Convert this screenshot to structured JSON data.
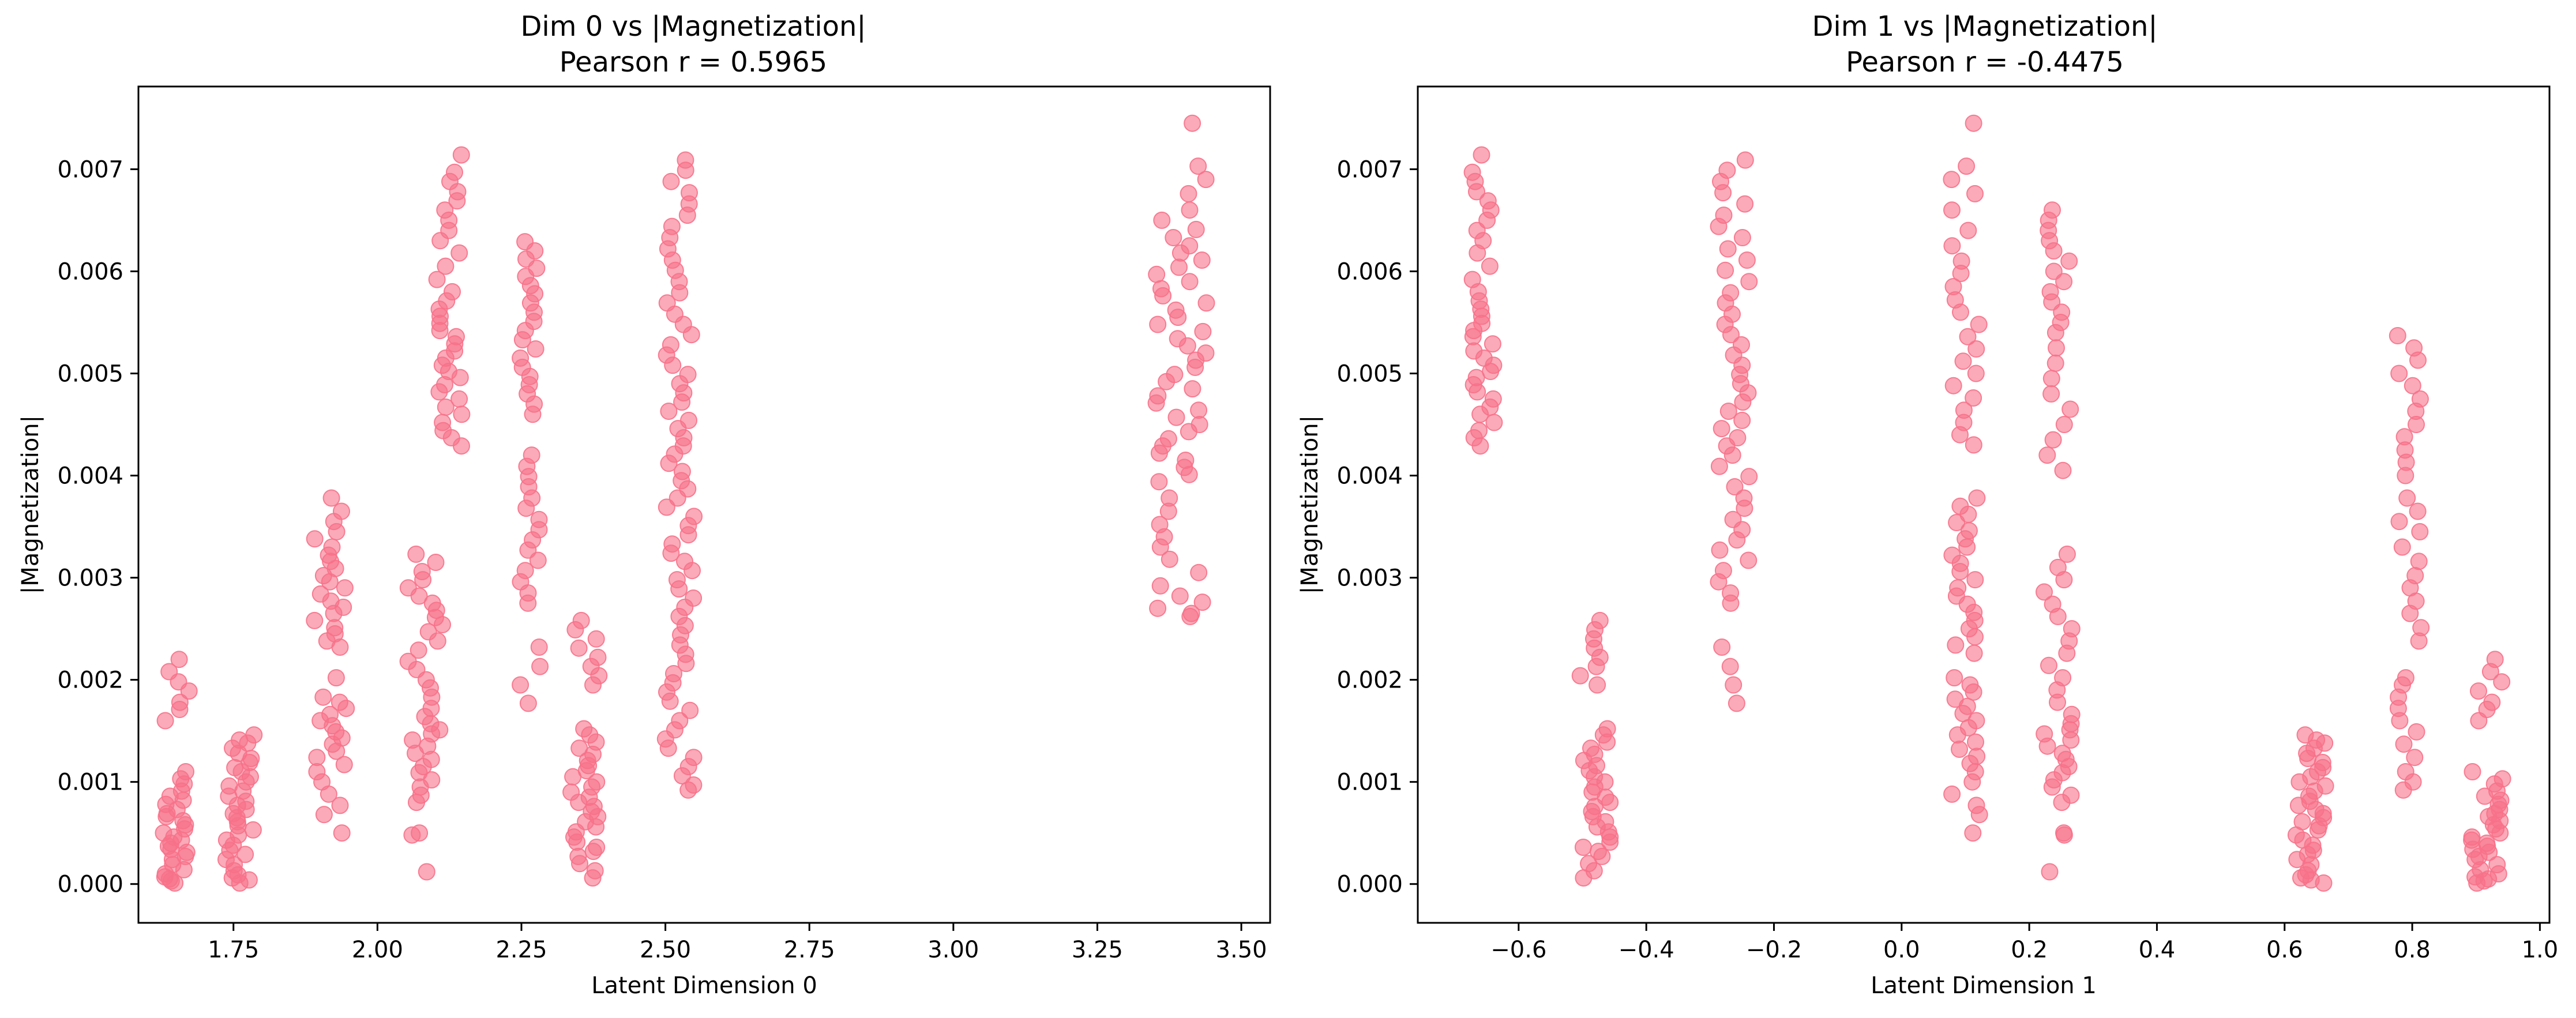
{
  "chart_data": [
    {
      "type": "scatter",
      "title": "Dim 0 vs |Magnetization|",
      "subtitle": "Pearson r = 0.5965",
      "xlabel": "Latent Dimension 0",
      "ylabel": "|Magnetization|",
      "xlim": [
        1.585,
        3.55
      ],
      "ylim": [
        -0.00038,
        0.00781
      ],
      "xticks": [
        1.75,
        2.0,
        2.25,
        2.5,
        2.75,
        3.0,
        3.25,
        3.5
      ],
      "xtick_labels": [
        "1.75",
        "2.00",
        "2.25",
        "2.50",
        "2.75",
        "3.00",
        "3.25",
        "3.50"
      ],
      "yticks": [
        0.0,
        0.001,
        0.002,
        0.003,
        0.004,
        0.005,
        0.006,
        0.007
      ],
      "ytick_labels": [
        "0.000",
        "0.001",
        "0.002",
        "0.003",
        "0.004",
        "0.005",
        "0.006",
        "0.007"
      ],
      "grid": false,
      "marker_color": "#f77189",
      "marker_alpha": 0.6,
      "clusters": [
        {
          "x_center": 1.648,
          "x_spread": 0.025,
          "y_values": [
            0.0022,
            0.00208,
            0.00198,
            0.00189,
            0.00178,
            0.00171,
            0.0016,
            0.0011,
            0.00103,
            0.00098,
            0.00091,
            0.00086,
            0.00082,
            0.00078,
            0.00073,
            0.00069,
            0.00066,
            0.00062,
            0.00058,
            0.00054,
            0.0005,
            0.00046,
            0.00043,
            0.0004,
            0.00037,
            0.00034,
            0.00031,
            0.00027,
            0.00024,
            0.00019,
            0.00014,
            0.0001,
            7e-05,
            5e-05,
            3e-05,
            1e-05
          ]
        },
        {
          "x_center": 1.762,
          "x_spread": 0.025,
          "y_values": [
            0.00146,
            0.00141,
            0.00138,
            0.00133,
            0.00128,
            0.00123,
            0.00119,
            0.00114,
            0.0011,
            0.00105,
            0.001,
            0.00096,
            0.00091,
            0.00086,
            0.00081,
            0.00077,
            0.00073,
            0.00069,
            0.00065,
            0.00061,
            0.00057,
            0.00053,
            0.00048,
            0.00043,
            0.00038,
            0.00033,
            0.00029,
            0.00024,
            0.00019,
            0.00013,
            9e-05,
            6e-05,
            4e-05,
            1e-05
          ]
        },
        {
          "x_center": 1.918,
          "x_spread": 0.028,
          "y_values": [
            0.00378,
            0.00365,
            0.00355,
            0.00345,
            0.00338,
            0.0033,
            0.00322,
            0.00316,
            0.00309,
            0.00302,
            0.00296,
            0.0029,
            0.00284,
            0.00277,
            0.00271,
            0.00265,
            0.00258,
            0.00251,
            0.00245,
            0.00238,
            0.00232,
            0.00202,
            0.00183,
            0.00178,
            0.00172,
            0.00166,
            0.0016,
            0.00155,
            0.00149,
            0.00143,
            0.00137,
            0.0013,
            0.00124,
            0.00117,
            0.0011,
            0.001,
            0.00088,
            0.00077,
            0.00068,
            0.0005
          ]
        },
        {
          "x_center": 2.083,
          "x_spread": 0.03,
          "y_values": [
            0.00323,
            0.00315,
            0.00306,
            0.00298,
            0.0029,
            0.00282,
            0.00275,
            0.00268,
            0.00261,
            0.00254,
            0.00247,
            0.00238,
            0.00229,
            0.00218,
            0.0021,
            0.002,
            0.00192,
            0.00183,
            0.00172,
            0.00164,
            0.00157,
            0.00151,
            0.00147,
            0.00141,
            0.00135,
            0.00128,
            0.00122,
            0.00115,
            0.00109,
            0.00102,
            0.00095,
            0.00087,
            0.0008,
            0.0005,
            0.00048,
            0.00012
          ]
        },
        {
          "x_center": 2.125,
          "x_spread": 0.022,
          "y_values": [
            0.00714,
            0.00697,
            0.00688,
            0.00678,
            0.00669,
            0.0066,
            0.0065,
            0.0064,
            0.0063,
            0.00618,
            0.00605,
            0.00592,
            0.0058,
            0.00571,
            0.00563,
            0.00556,
            0.00549,
            0.00542,
            0.00536,
            0.00529,
            0.00522,
            0.00515,
            0.00508,
            0.00502,
            0.00496,
            0.00489,
            0.00482,
            0.00475,
            0.00467,
            0.0046,
            0.00452,
            0.00444,
            0.00437,
            0.00429
          ]
        },
        {
          "x_center": 2.265,
          "x_spread": 0.018,
          "y_values": [
            0.00629,
            0.0062,
            0.00612,
            0.00603,
            0.00595,
            0.00586,
            0.00578,
            0.00569,
            0.0056,
            0.00551,
            0.00542,
            0.00533,
            0.00524,
            0.00515,
            0.00506,
            0.00497,
            0.00489,
            0.0048,
            0.0047,
            0.0046,
            0.0042,
            0.00409,
            0.00399,
            0.00389,
            0.00378,
            0.00368,
            0.00357,
            0.00347,
            0.00337,
            0.00327,
            0.00317,
            0.00307,
            0.00296,
            0.00285,
            0.00275,
            0.00232,
            0.00213,
            0.00195,
            0.00177
          ]
        },
        {
          "x_center": 2.36,
          "x_spread": 0.025,
          "y_values": [
            0.00258,
            0.00249,
            0.0024,
            0.00231,
            0.00222,
            0.00213,
            0.00204,
            0.00195,
            0.00152,
            0.00146,
            0.00139,
            0.00133,
            0.00127,
            0.00121,
            0.00116,
            0.00111,
            0.00105,
            0.001,
            0.00095,
            0.0009,
            0.00085,
            0.0008,
            0.00076,
            0.00071,
            0.00066,
            0.00061,
            0.00056,
            0.00051,
            0.00046,
            0.00041,
            0.00036,
            0.00032,
            0.00027,
            0.0002,
            0.00013,
            6e-05
          ]
        },
        {
          "x_center": 2.525,
          "x_spread": 0.025,
          "y_values": [
            0.00709,
            0.00699,
            0.00688,
            0.00677,
            0.00666,
            0.00655,
            0.00644,
            0.00633,
            0.00622,
            0.00611,
            0.00601,
            0.0059,
            0.00579,
            0.00569,
            0.00558,
            0.00548,
            0.00538,
            0.00528,
            0.00518,
            0.00508,
            0.00499,
            0.0049,
            0.00481,
            0.00472,
            0.00463,
            0.00454,
            0.00446,
            0.00437,
            0.00429,
            0.00421,
            0.00412,
            0.00404,
            0.00395,
            0.00387,
            0.00378,
            0.00369,
            0.0036,
            0.00351,
            0.00342,
            0.00333,
            0.00324,
            0.00316,
            0.00307,
            0.00298,
            0.00289,
            0.0028,
            0.00271,
            0.00262,
            0.00253,
            0.00244,
            0.00234,
            0.00225,
            0.00216,
            0.00206,
            0.00197,
            0.00188,
            0.00179,
            0.0017,
            0.0016,
            0.00151,
            0.00142,
            0.00133,
            0.00124,
            0.00115,
            0.00106,
            0.00097,
            0.00092
          ]
        },
        {
          "x_center": 3.395,
          "x_spread": 0.045,
          "y_values": [
            0.00745,
            0.00703,
            0.0069,
            0.00676,
            0.0066,
            0.0065,
            0.00641,
            0.00633,
            0.00625,
            0.00618,
            0.00611,
            0.00604,
            0.00597,
            0.0059,
            0.00583,
            0.00576,
            0.00569,
            0.00562,
            0.00555,
            0.00548,
            0.00541,
            0.00534,
            0.00527,
            0.0052,
            0.00513,
            0.00506,
            0.00499,
            0.00492,
            0.00485,
            0.00478,
            0.00471,
            0.00464,
            0.00457,
            0.0045,
            0.00443,
            0.00436,
            0.00429,
            0.00422,
            0.00415,
            0.00408,
            0.00401,
            0.00394,
            0.00378,
            0.00365,
            0.00352,
            0.0034,
            0.0033,
            0.00318,
            0.00305,
            0.00292,
            0.00282,
            0.00276,
            0.0027,
            0.00265,
            0.00262
          ]
        }
      ]
    },
    {
      "type": "scatter",
      "title": "Dim 1 vs |Magnetization|",
      "subtitle": "Pearson r = -0.4475",
      "xlabel": "Latent Dimension 1",
      "ylabel": "|Magnetization|",
      "xlim": [
        -0.758,
        1.015
      ],
      "ylim": [
        -0.00038,
        0.00781
      ],
      "xticks": [
        -0.6,
        -0.4,
        -0.2,
        0.0,
        0.2,
        0.4,
        0.6,
        0.8,
        1.0
      ],
      "xtick_labels": [
        "−0.6",
        "−0.4",
        "−0.2",
        "0.0",
        "0.2",
        "0.4",
        "0.6",
        "0.8",
        "1.0"
      ],
      "yticks": [
        0.0,
        0.001,
        0.002,
        0.003,
        0.004,
        0.005,
        0.006,
        0.007
      ],
      "ytick_labels": [
        "0.000",
        "0.001",
        "0.002",
        "0.003",
        "0.004",
        "0.005",
        "0.006",
        "0.007"
      ],
      "grid": false,
      "marker_color": "#f77189",
      "marker_alpha": 0.6,
      "clusters": [
        {
          "x_center": -0.655,
          "x_spread": 0.018,
          "y_values": [
            0.00714,
            0.00697,
            0.00688,
            0.00678,
            0.00669,
            0.0066,
            0.0065,
            0.0064,
            0.0063,
            0.00618,
            0.00605,
            0.00592,
            0.0058,
            0.00571,
            0.00563,
            0.00556,
            0.00549,
            0.00542,
            0.00536,
            0.00529,
            0.00522,
            0.00515,
            0.00508,
            0.00502,
            0.00496,
            0.00489,
            0.00482,
            0.00475,
            0.00467,
            0.0046,
            0.00452,
            0.00444,
            0.00437,
            0.00429
          ]
        },
        {
          "x_center": -0.48,
          "x_spread": 0.025,
          "y_values": [
            0.00258,
            0.00249,
            0.0024,
            0.00231,
            0.00222,
            0.00213,
            0.00204,
            0.00195,
            0.00152,
            0.00146,
            0.00139,
            0.00133,
            0.00127,
            0.00121,
            0.00116,
            0.00111,
            0.00105,
            0.001,
            0.00095,
            0.0009,
            0.00085,
            0.0008,
            0.00076,
            0.00071,
            0.00066,
            0.00061,
            0.00056,
            0.00051,
            0.00046,
            0.00041,
            0.00036,
            0.00032,
            0.00027,
            0.0002,
            0.00013,
            6e-05
          ]
        },
        {
          "x_center": -0.262,
          "x_spread": 0.025,
          "y_values": [
            0.00709,
            0.00699,
            0.00688,
            0.00677,
            0.00666,
            0.00655,
            0.00644,
            0.00633,
            0.00622,
            0.00611,
            0.00601,
            0.0059,
            0.00579,
            0.00569,
            0.00558,
            0.00548,
            0.00538,
            0.00528,
            0.00518,
            0.00508,
            0.00499,
            0.0049,
            0.00481,
            0.00472,
            0.00463,
            0.00454,
            0.00446,
            0.00437,
            0.00429,
            0.0042,
            0.00409,
            0.00399,
            0.00389,
            0.00378,
            0.00368,
            0.00357,
            0.00347,
            0.00337,
            0.00327,
            0.00317,
            0.00307,
            0.00296,
            0.00285,
            0.00275,
            0.00232,
            0.00213,
            0.00195,
            0.00177
          ]
        },
        {
          "x_center": 0.1,
          "x_spread": 0.022,
          "y_values": [
            0.00745,
            0.00703,
            0.0069,
            0.00676,
            0.0066,
            0.0064,
            0.00625,
            0.0061,
            0.00598,
            0.00585,
            0.00572,
            0.0056,
            0.00548,
            0.00536,
            0.00524,
            0.00512,
            0.005,
            0.00488,
            0.00476,
            0.00464,
            0.00452,
            0.0044,
            0.0043,
            0.00378,
            0.0037,
            0.00362,
            0.00354,
            0.00346,
            0.00338,
            0.0033,
            0.00322,
            0.00314,
            0.00306,
            0.00298,
            0.0029,
            0.00282,
            0.00274,
            0.00266,
            0.00258,
            0.0025,
            0.00242,
            0.00234,
            0.00226,
            0.00202,
            0.00195,
            0.00188,
            0.00181,
            0.00174,
            0.00167,
            0.0016,
            0.00153,
            0.00146,
            0.00139,
            0.00132,
            0.00125,
            0.00118,
            0.0011,
            0.001,
            0.00088,
            0.00077,
            0.00068,
            0.0005
          ]
        },
        {
          "x_center": 0.245,
          "x_spread": 0.022,
          "y_values": [
            0.0066,
            0.0065,
            0.0064,
            0.0063,
            0.0062,
            0.0061,
            0.006,
            0.0059,
            0.0058,
            0.0057,
            0.0056,
            0.0055,
            0.0054,
            0.00525,
            0.0051,
            0.00495,
            0.0048,
            0.00465,
            0.0045,
            0.00435,
            0.0042,
            0.00405,
            0.00323,
            0.0031,
            0.00298,
            0.00286,
            0.00274,
            0.00262,
            0.0025,
            0.00238,
            0.00226,
            0.00214,
            0.00202,
            0.0019,
            0.00178,
            0.00166,
            0.00157,
            0.00151,
            0.00147,
            0.00141,
            0.00135,
            0.00128,
            0.00122,
            0.00115,
            0.00109,
            0.00102,
            0.00095,
            0.00087,
            0.0008,
            0.0005,
            0.00048,
            0.00012
          ]
        },
        {
          "x_center": 0.64,
          "x_spread": 0.025,
          "y_values": [
            0.00146,
            0.00141,
            0.00138,
            0.00133,
            0.00128,
            0.00123,
            0.00119,
            0.00114,
            0.0011,
            0.00105,
            0.001,
            0.00096,
            0.00091,
            0.00086,
            0.00081,
            0.00077,
            0.00073,
            0.00069,
            0.00065,
            0.00061,
            0.00057,
            0.00053,
            0.00048,
            0.00043,
            0.00038,
            0.00033,
            0.00029,
            0.00024,
            0.00019,
            0.00013,
            9e-05,
            6e-05,
            4e-05,
            1e-05
          ]
        },
        {
          "x_center": 0.795,
          "x_spread": 0.02,
          "y_values": [
            0.00537,
            0.00525,
            0.00513,
            0.005,
            0.00488,
            0.00475,
            0.00463,
            0.0045,
            0.00438,
            0.00425,
            0.00413,
            0.004,
            0.00378,
            0.00365,
            0.00355,
            0.00345,
            0.0033,
            0.00316,
            0.00302,
            0.0029,
            0.00277,
            0.00265,
            0.00251,
            0.00238,
            0.00202,
            0.00195,
            0.00183,
            0.00172,
            0.0016,
            0.00149,
            0.00137,
            0.00124,
            0.0011,
            0.001,
            0.00092
          ]
        },
        {
          "x_center": 0.918,
          "x_spread": 0.025,
          "y_values": [
            0.0022,
            0.00208,
            0.00198,
            0.00189,
            0.00178,
            0.00171,
            0.0016,
            0.0011,
            0.00103,
            0.00098,
            0.00091,
            0.00086,
            0.00082,
            0.00078,
            0.00073,
            0.00069,
            0.00066,
            0.00062,
            0.00058,
            0.00054,
            0.0005,
            0.00046,
            0.00043,
            0.0004,
            0.00037,
            0.00034,
            0.00031,
            0.00027,
            0.00024,
            0.00019,
            0.00014,
            0.0001,
            7e-05,
            5e-05,
            3e-05,
            1e-05
          ]
        }
      ]
    }
  ]
}
